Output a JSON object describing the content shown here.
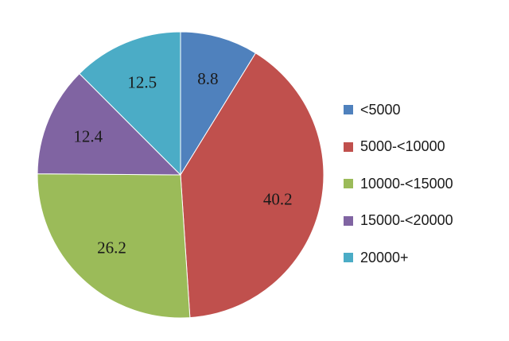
{
  "chart_data": {
    "type": "pie",
    "categories": [
      "<5000",
      "5000-<10000",
      "10000-<15000",
      "15000-<20000",
      "20000+"
    ],
    "values": [
      8.8,
      40.2,
      26.2,
      12.4,
      12.5
    ],
    "colors": [
      "#4f81bd",
      "#c0504d",
      "#9bbb59",
      "#8064a2",
      "#4bacc6"
    ],
    "start": "12 o'clock",
    "direction": "clockwise",
    "legend": "right"
  }
}
